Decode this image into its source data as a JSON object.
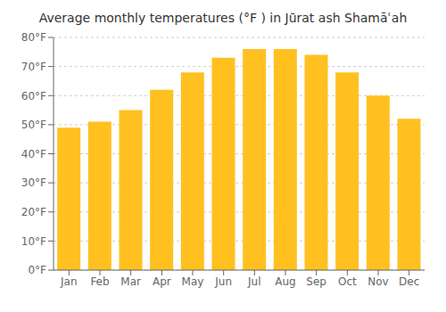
{
  "chart_data": {
    "type": "bar",
    "title": "Average monthly temperatures (°F ) in Jūrat ash Shamāʿah",
    "categories": [
      "Jan",
      "Feb",
      "Mar",
      "Apr",
      "May",
      "Jun",
      "Jul",
      "Aug",
      "Sep",
      "Oct",
      "Nov",
      "Dec"
    ],
    "values": [
      49,
      51,
      55,
      62,
      68,
      73,
      76,
      76,
      74,
      68,
      60,
      52
    ],
    "color": "#FFC020",
    "ylim": [
      0,
      80
    ],
    "yticks": [
      {
        "value": 0,
        "label": "0°F"
      },
      {
        "value": 10,
        "label": "10°F"
      },
      {
        "value": 20,
        "label": "20°F"
      },
      {
        "value": 30,
        "label": "30°F"
      },
      {
        "value": 40,
        "label": "40°F"
      },
      {
        "value": 50,
        "label": "50°F"
      },
      {
        "value": 60,
        "label": "60°F"
      },
      {
        "value": 70,
        "label": "70°F"
      },
      {
        "value": 80,
        "label": "80°F"
      }
    ],
    "grid": true
  }
}
